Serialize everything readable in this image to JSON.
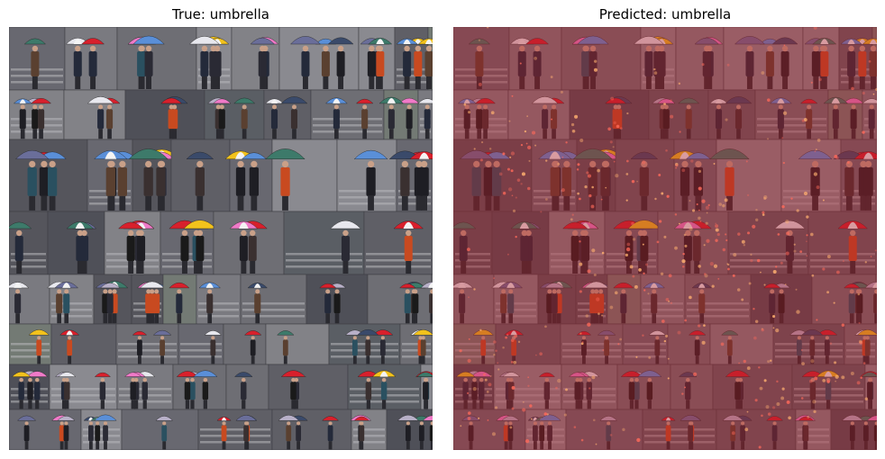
{
  "figure": {
    "left_panel": {
      "title": "True: umbrella",
      "image_description_icon": "photo-collage-icon"
    },
    "right_panel": {
      "title": "Predicted: umbrella",
      "image_description_icon": "heatmap-overlay-icon"
    },
    "colors": {
      "background": "#ffffff",
      "overlay": "#b01e2a",
      "umbrella_red": "#d8202c",
      "umbrella_pink": "#f07ac8",
      "umbrella_blue": "#5a8fd8",
      "umbrella_yellow": "#f2c21c",
      "street_gray": "#7d7d82"
    }
  }
}
